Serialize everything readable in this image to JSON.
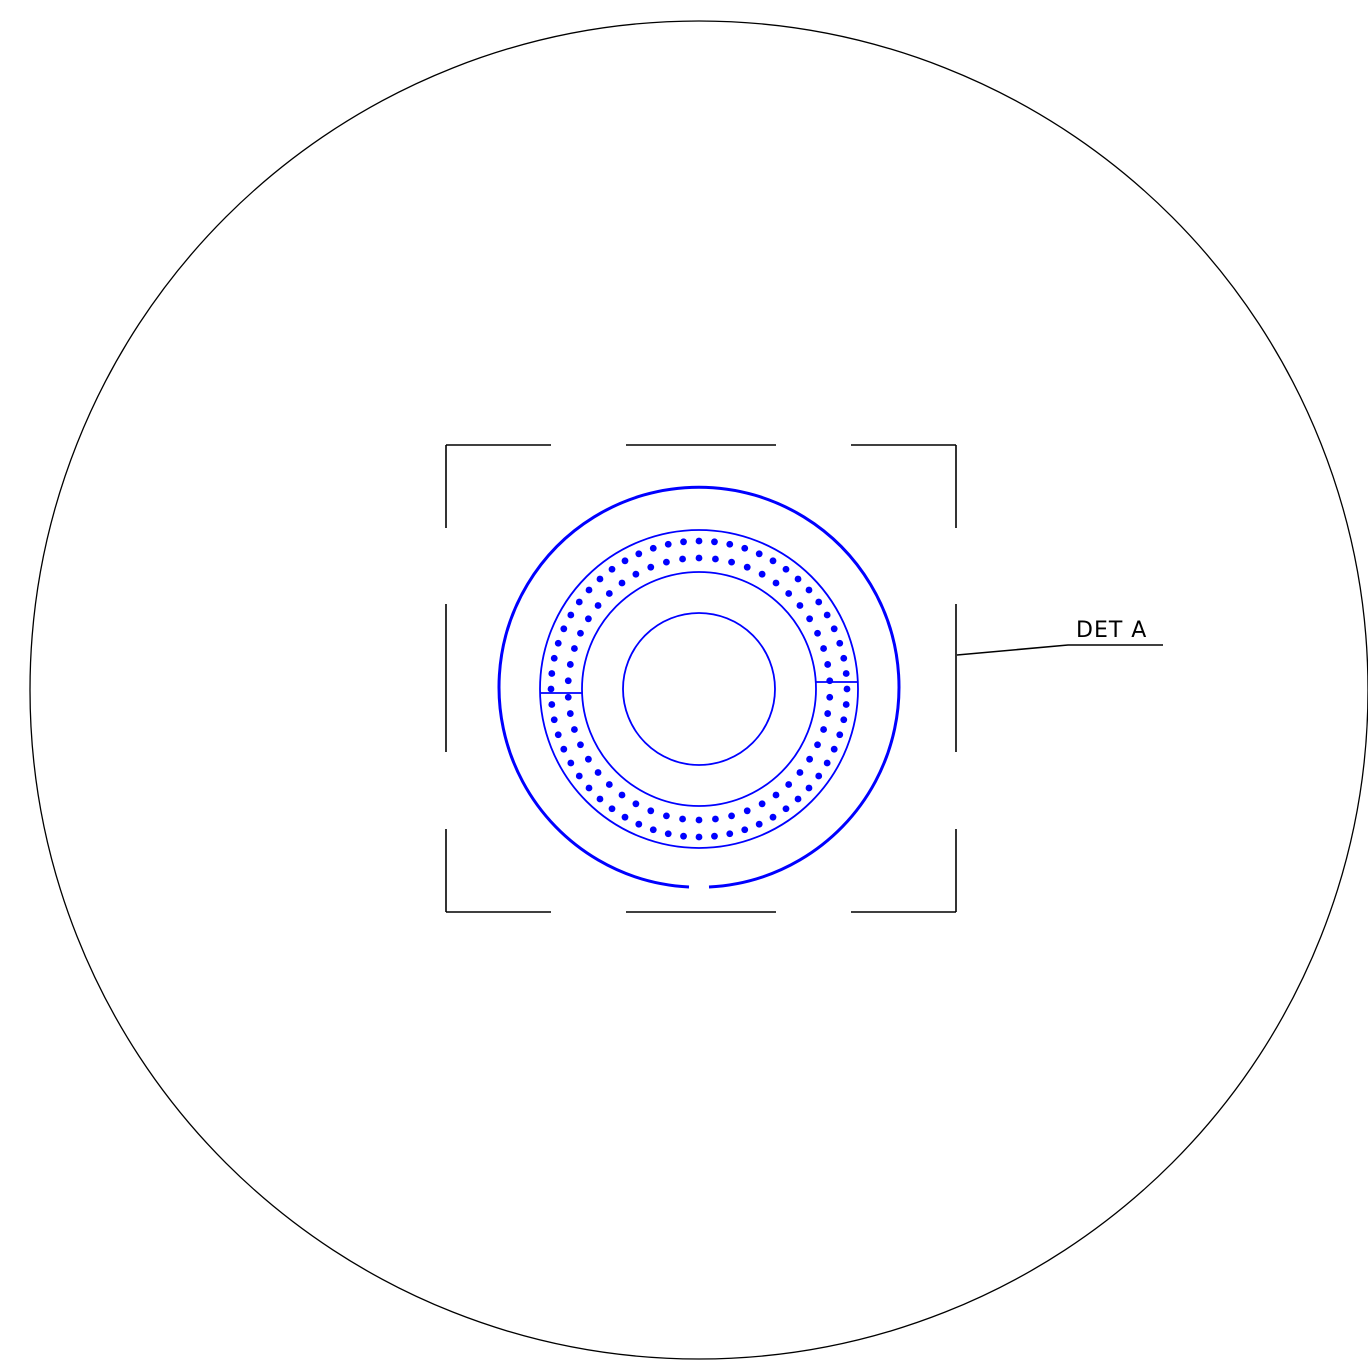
{
  "drawing": {
    "detail_callout_label": "DET A",
    "outline_color": "#000000",
    "detail_color": "#0000ff",
    "hole_rings": {
      "outer_ring_hole_count": 60,
      "inner_ring_hole_count": 50
    }
  }
}
